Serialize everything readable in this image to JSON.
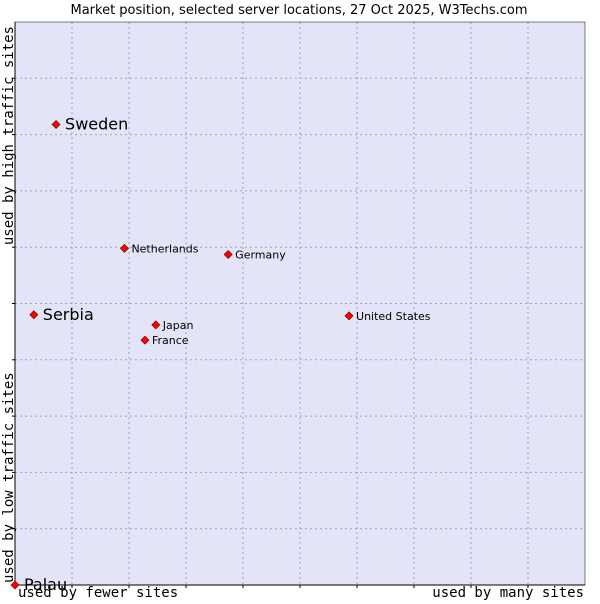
{
  "chart_data": {
    "type": "scatter",
    "title": "Market position, selected server locations, 27 Oct 2025, W3Techs.com",
    "xlabel_low": "used by fewer sites",
    "xlabel_high": "used by many sites",
    "ylabel_low": "used by low traffic sites",
    "ylabel_high": "used by high traffic sites",
    "xlim": [
      0,
      10
    ],
    "ylim": [
      0,
      10
    ],
    "grid": true,
    "colors": {
      "plot_background": "#e4e4f8",
      "grid": "#a0a0c0",
      "axis": "#000000",
      "point": "#ff0000",
      "point_stroke": "#880000",
      "label": "#000000"
    },
    "points": [
      {
        "name": "Sweden",
        "x": 0.72,
        "y": 8.18,
        "highlight": true
      },
      {
        "name": "Netherlands",
        "x": 1.92,
        "y": 5.98,
        "highlight": false
      },
      {
        "name": "Germany",
        "x": 3.74,
        "y": 5.87,
        "highlight": false
      },
      {
        "name": "Serbia",
        "x": 0.33,
        "y": 4.8,
        "highlight": true
      },
      {
        "name": "Japan",
        "x": 2.47,
        "y": 4.62,
        "highlight": false
      },
      {
        "name": "France",
        "x": 2.28,
        "y": 4.35,
        "highlight": false
      },
      {
        "name": "United States",
        "x": 5.86,
        "y": 4.78,
        "highlight": false
      },
      {
        "name": "Palau",
        "x": 0.0,
        "y": 0.0,
        "highlight": true
      }
    ]
  }
}
